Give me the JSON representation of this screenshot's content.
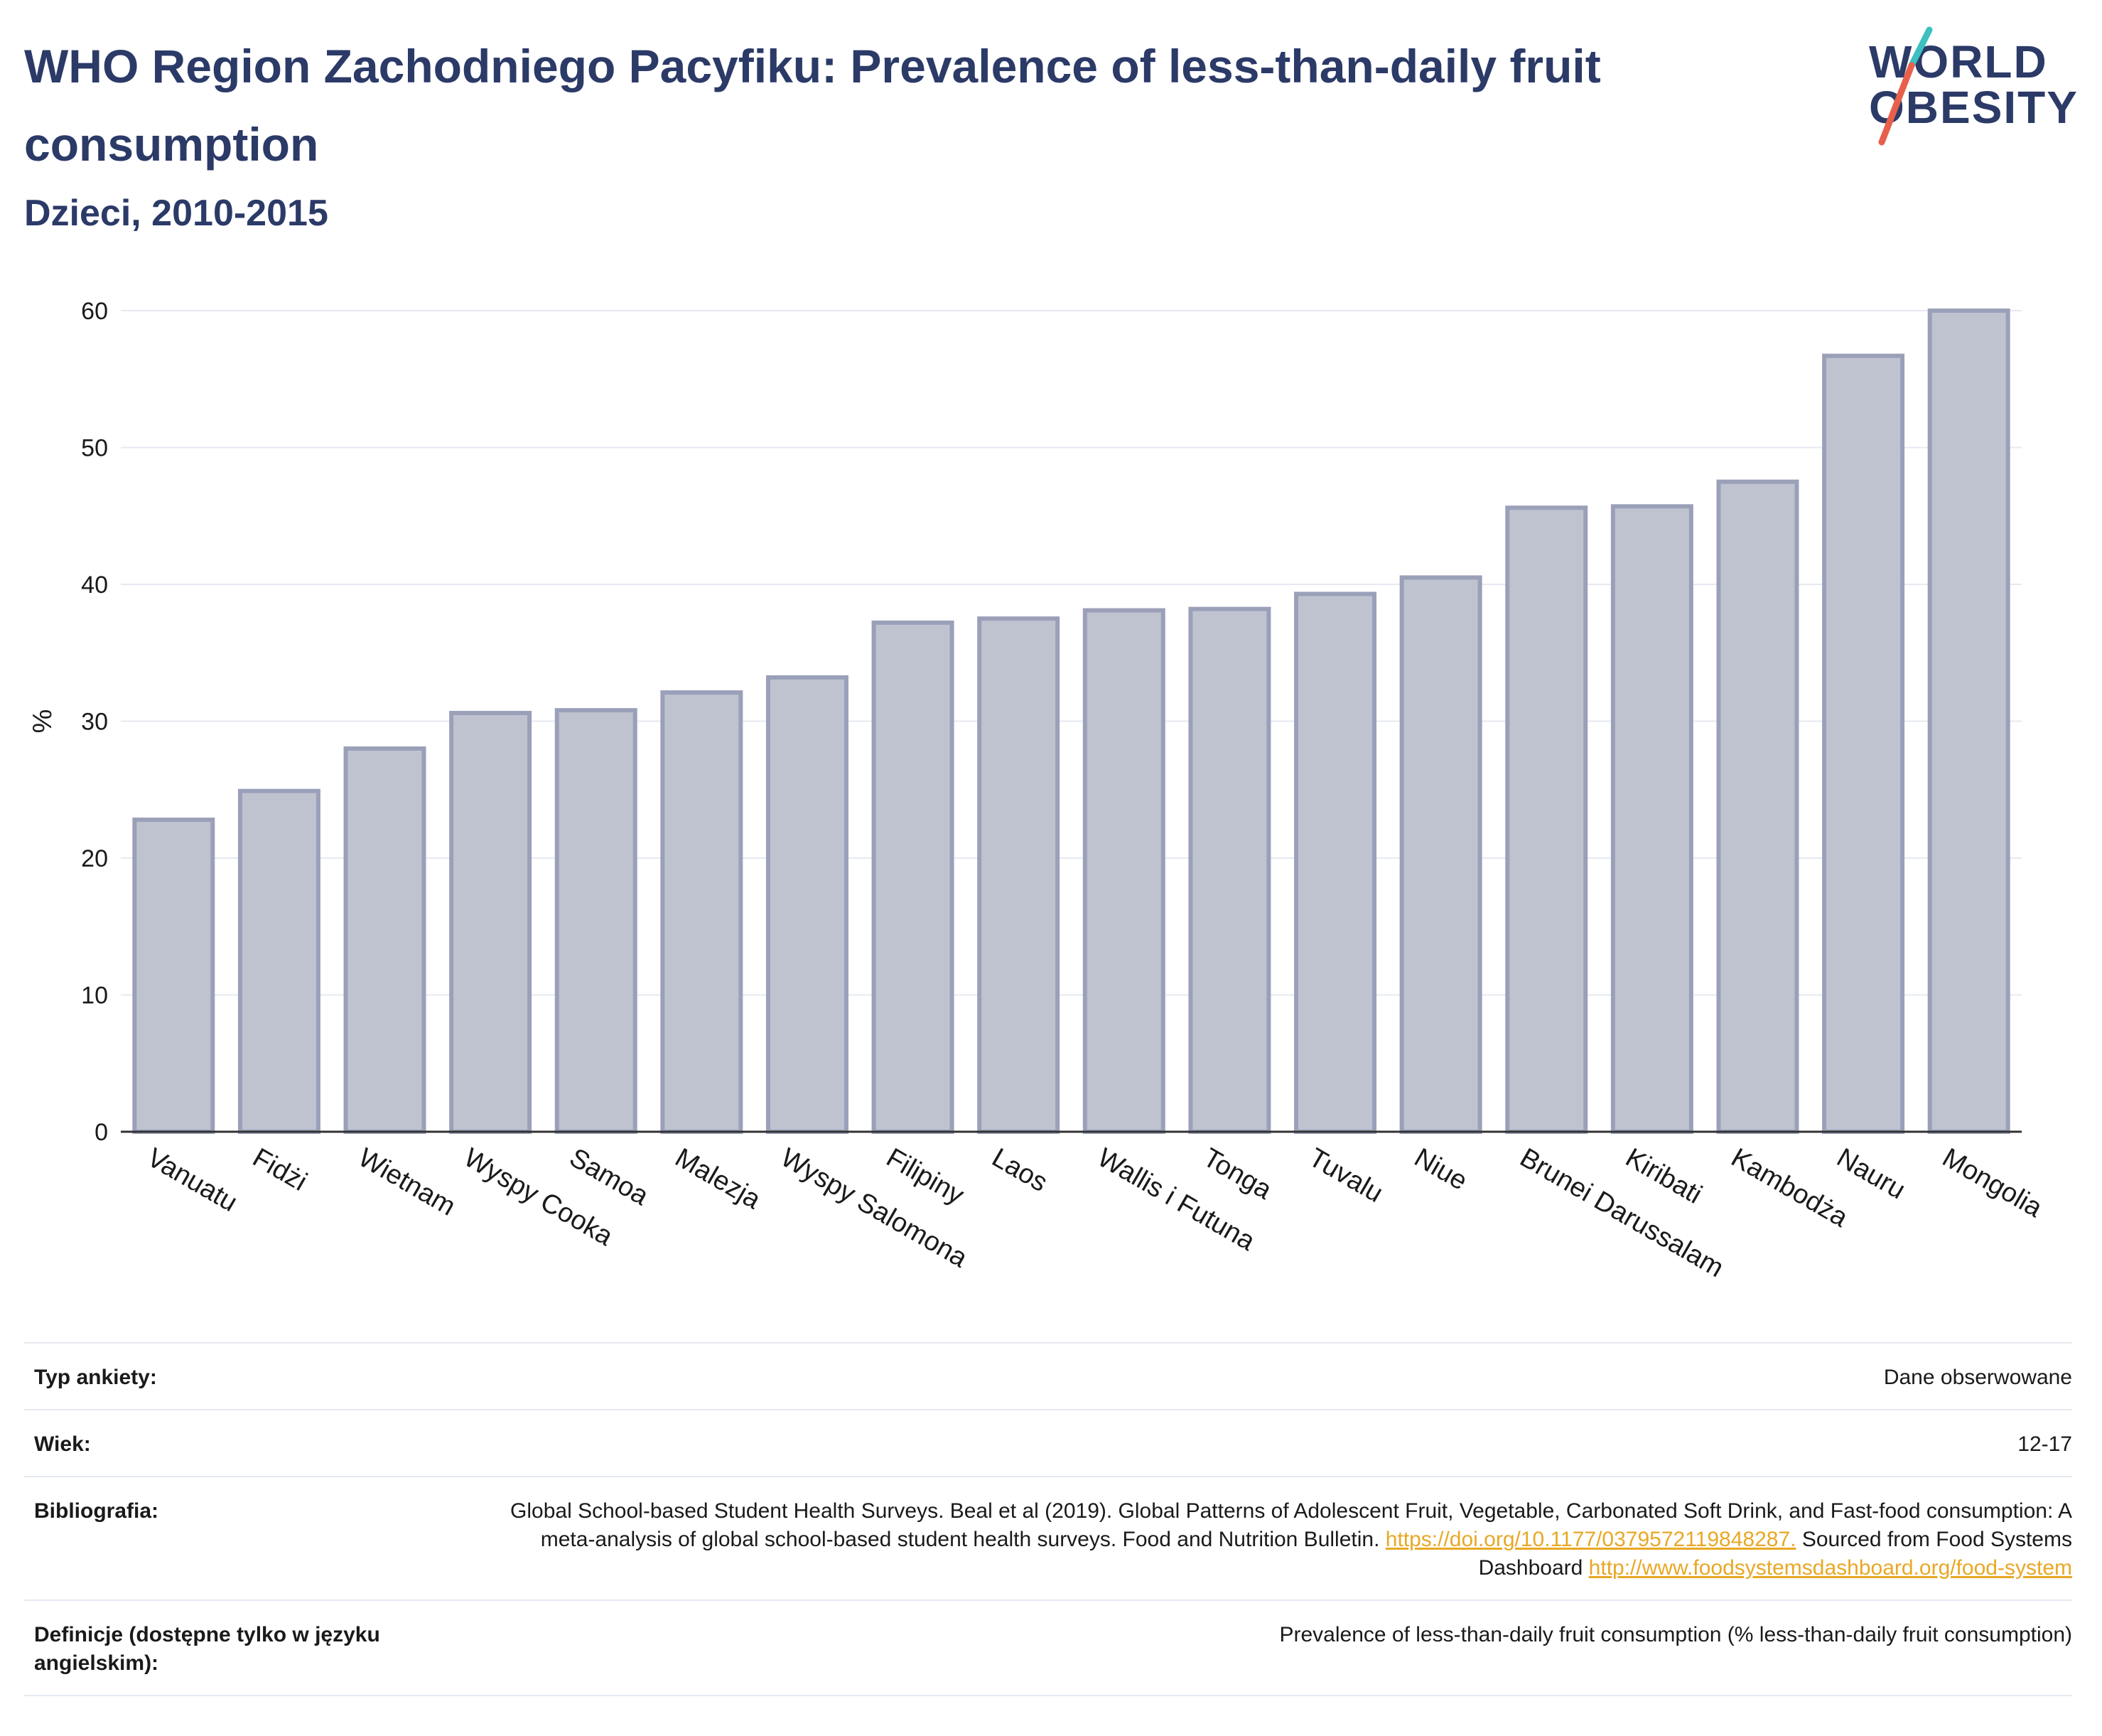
{
  "header": {
    "title": "WHO Region Zachodniego Pacyfiku: Prevalence of less-than-daily fruit consumption",
    "subtitle": "Dzieci, 2010-2015"
  },
  "logo": {
    "line1": "WORLD",
    "line2": "OBESITY",
    "accent_colors": [
      "#3cc0c0",
      "#e8604c"
    ]
  },
  "chart_data": {
    "type": "bar",
    "ylabel": "%",
    "xlabel": "",
    "ylim": [
      0,
      60
    ],
    "yticks": [
      0,
      10,
      20,
      30,
      40,
      50,
      60
    ],
    "categories": [
      "Vanuatu",
      "Fidżi",
      "Wietnam",
      "Wyspy Cooka",
      "Samoa",
      "Malezja",
      "Wyspy Salomona",
      "Filipiny",
      "Laos",
      "Wallis i Futuna",
      "Tonga",
      "Tuvalu",
      "Niue",
      "Brunei Darussalam",
      "Kiribati",
      "Kambodża",
      "Nauru",
      "Mongolia"
    ],
    "values": [
      22.8,
      24.9,
      28.0,
      30.6,
      30.8,
      32.1,
      33.2,
      37.2,
      37.5,
      38.1,
      38.2,
      39.3,
      40.5,
      45.6,
      45.7,
      47.5,
      56.7,
      60.0
    ],
    "bar_fill": "#bfc3d0",
    "bar_stroke": "#9aa0b8",
    "grid": true
  },
  "info": {
    "survey_label": "Typ ankiety:",
    "survey_value": "Dane obserwowane",
    "age_label": "Wiek:",
    "age_value": "12-17",
    "bib_label": "Bibliografia:",
    "bib_text1": "Global School-based Student Health Surveys. Beal et al (2019). Global Patterns of Adolescent Fruit, Vegetable, Carbonated Soft Drink, and Fast-food consumption: A meta-analysis of global school-based student health surveys. Food and Nutrition Bulletin.",
    "bib_link1": "https://doi.org/10.1177/0379572119848287.",
    "bib_text2": "Sourced from Food Systems Dashboard",
    "bib_link2": "http://www.foodsystemsdashboard.org/food-system",
    "def_label": "Definicje (dostępne tylko w języku angielskim):",
    "def_value": "Prevalence of less-than-daily fruit consumption (% less-than-daily fruit consumption)"
  }
}
